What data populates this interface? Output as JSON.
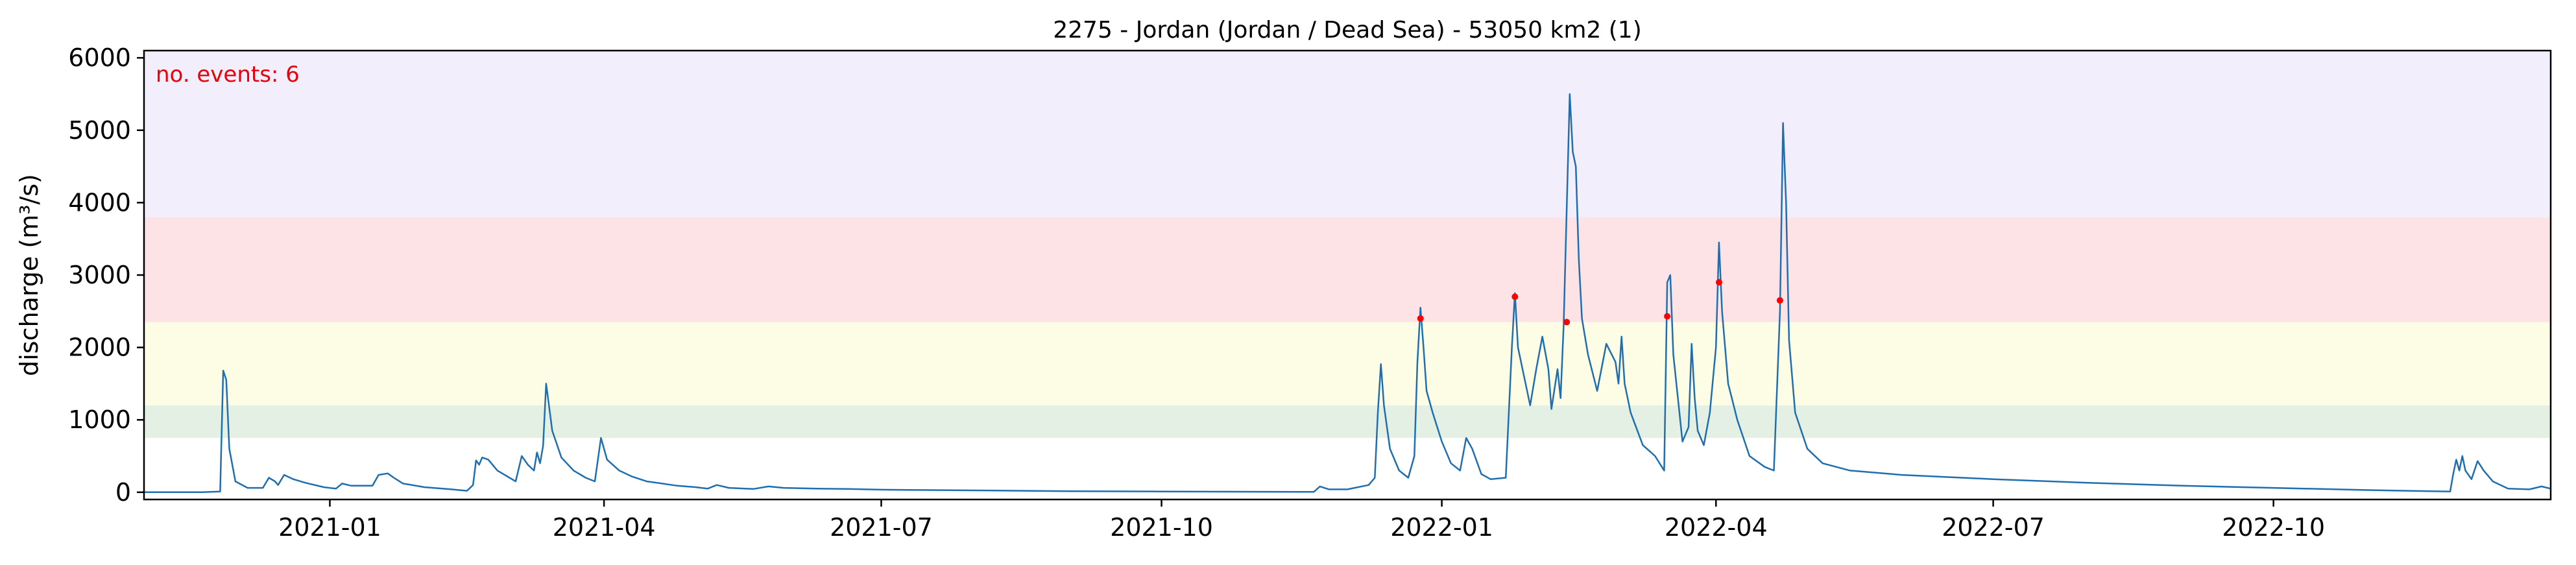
{
  "chart_data": {
    "type": "line",
    "title": "2275 - Jordan (Jordan / Dead Sea) - 53050 km2 (1)",
    "xlabel": "",
    "ylabel": "discharge (m³/s)",
    "annotation": "no. events: 6",
    "annotation_color": "#e8000b",
    "line_color": "#1f6fb0",
    "event_color": "#ff0000",
    "x_range": [
      "2020-11-01",
      "2022-12-31"
    ],
    "ylim": [
      -100,
      6100
    ],
    "yticks": [
      0,
      1000,
      2000,
      3000,
      4000,
      5000,
      6000
    ],
    "xticks": [
      "2021-01",
      "2021-04",
      "2021-07",
      "2021-10",
      "2022-01",
      "2022-04",
      "2022-07",
      "2022-10"
    ],
    "grid": false,
    "bands": [
      {
        "from": 750,
        "to": 1200,
        "color": "#e3f0e3"
      },
      {
        "from": 1200,
        "to": 2350,
        "color": "#fdfde5"
      },
      {
        "from": 2350,
        "to": 3800,
        "color": "#fde3e6"
      },
      {
        "from": 3800,
        "to": 6100,
        "color": "#f3eefb"
      }
    ],
    "series": [
      {
        "points": [
          [
            "2020-11-01",
            0
          ],
          [
            "2020-11-20",
            0
          ],
          [
            "2020-11-26",
            10
          ],
          [
            "2020-11-27",
            1680
          ],
          [
            "2020-11-28",
            1550
          ],
          [
            "2020-11-29",
            600
          ],
          [
            "2020-12-01",
            150
          ],
          [
            "2020-12-05",
            60
          ],
          [
            "2020-12-10",
            60
          ],
          [
            "2020-12-12",
            200
          ],
          [
            "2020-12-14",
            150
          ],
          [
            "2020-12-15",
            100
          ],
          [
            "2020-12-17",
            240
          ],
          [
            "2020-12-20",
            180
          ],
          [
            "2020-12-24",
            130
          ],
          [
            "2020-12-30",
            70
          ],
          [
            "2021-01-03",
            50
          ],
          [
            "2021-01-05",
            120
          ],
          [
            "2021-01-08",
            90
          ],
          [
            "2021-01-15",
            90
          ],
          [
            "2021-01-17",
            240
          ],
          [
            "2021-01-20",
            260
          ],
          [
            "2021-01-22",
            200
          ],
          [
            "2021-01-25",
            120
          ],
          [
            "2021-02-01",
            70
          ],
          [
            "2021-02-10",
            40
          ],
          [
            "2021-02-15",
            20
          ],
          [
            "2021-02-17",
            100
          ],
          [
            "2021-02-18",
            440
          ],
          [
            "2021-02-19",
            380
          ],
          [
            "2021-02-20",
            480
          ],
          [
            "2021-02-22",
            450
          ],
          [
            "2021-02-25",
            300
          ],
          [
            "2021-03-01",
            200
          ],
          [
            "2021-03-03",
            150
          ],
          [
            "2021-03-05",
            500
          ],
          [
            "2021-03-07",
            380
          ],
          [
            "2021-03-09",
            300
          ],
          [
            "2021-03-10",
            550
          ],
          [
            "2021-03-11",
            400
          ],
          [
            "2021-03-12",
            640
          ],
          [
            "2021-03-13",
            1500
          ],
          [
            "2021-03-15",
            850
          ],
          [
            "2021-03-18",
            480
          ],
          [
            "2021-03-22",
            300
          ],
          [
            "2021-03-26",
            200
          ],
          [
            "2021-03-29",
            150
          ],
          [
            "2021-03-31",
            750
          ],
          [
            "2021-04-02",
            450
          ],
          [
            "2021-04-06",
            300
          ],
          [
            "2021-04-10",
            220
          ],
          [
            "2021-04-15",
            150
          ],
          [
            "2021-04-20",
            120
          ],
          [
            "2021-04-25",
            90
          ],
          [
            "2021-05-01",
            70
          ],
          [
            "2021-05-05",
            50
          ],
          [
            "2021-05-08",
            100
          ],
          [
            "2021-05-12",
            60
          ],
          [
            "2021-05-20",
            45
          ],
          [
            "2021-05-25",
            80
          ],
          [
            "2021-05-30",
            60
          ],
          [
            "2021-06-10",
            50
          ],
          [
            "2021-06-20",
            45
          ],
          [
            "2021-07-01",
            35
          ],
          [
            "2021-08-01",
            25
          ],
          [
            "2021-09-01",
            15
          ],
          [
            "2021-10-01",
            10
          ],
          [
            "2021-11-15",
            5
          ],
          [
            "2021-11-20",
            5
          ],
          [
            "2021-11-22",
            80
          ],
          [
            "2021-11-25",
            40
          ],
          [
            "2021-12-01",
            40
          ],
          [
            "2021-12-08",
            100
          ],
          [
            "2021-12-10",
            200
          ],
          [
            "2021-12-11",
            1100
          ],
          [
            "2021-12-12",
            1770
          ],
          [
            "2021-12-13",
            1200
          ],
          [
            "2021-12-15",
            600
          ],
          [
            "2021-12-18",
            300
          ],
          [
            "2021-12-21",
            200
          ],
          [
            "2021-12-23",
            500
          ],
          [
            "2021-12-24",
            1800
          ],
          [
            "2021-12-25",
            2550
          ],
          [
            "2021-12-26",
            2000
          ],
          [
            "2021-12-27",
            1400
          ],
          [
            "2021-12-29",
            1100
          ],
          [
            "2022-01-01",
            700
          ],
          [
            "2022-01-04",
            400
          ],
          [
            "2022-01-07",
            300
          ],
          [
            "2022-01-09",
            750
          ],
          [
            "2022-01-11",
            600
          ],
          [
            "2022-01-14",
            250
          ],
          [
            "2022-01-17",
            180
          ],
          [
            "2022-01-22",
            200
          ],
          [
            "2022-01-24",
            2000
          ],
          [
            "2022-01-25",
            2750
          ],
          [
            "2022-01-26",
            2000
          ],
          [
            "2022-01-28",
            1600
          ],
          [
            "2022-01-30",
            1200
          ],
          [
            "2022-02-01",
            1700
          ],
          [
            "2022-02-03",
            2150
          ],
          [
            "2022-02-05",
            1700
          ],
          [
            "2022-02-06",
            1150
          ],
          [
            "2022-02-08",
            1700
          ],
          [
            "2022-02-09",
            1300
          ],
          [
            "2022-02-10",
            2300
          ],
          [
            "2022-02-12",
            5500
          ],
          [
            "2022-02-13",
            4700
          ],
          [
            "2022-02-14",
            4500
          ],
          [
            "2022-02-15",
            3200
          ],
          [
            "2022-02-16",
            2400
          ],
          [
            "2022-02-18",
            1900
          ],
          [
            "2022-02-21",
            1400
          ],
          [
            "2022-02-24",
            2050
          ],
          [
            "2022-02-27",
            1800
          ],
          [
            "2022-02-28",
            1500
          ],
          [
            "2022-03-01",
            2150
          ],
          [
            "2022-03-02",
            1500
          ],
          [
            "2022-03-04",
            1100
          ],
          [
            "2022-03-08",
            650
          ],
          [
            "2022-03-12",
            500
          ],
          [
            "2022-03-15",
            300
          ],
          [
            "2022-03-16",
            2900
          ],
          [
            "2022-03-17",
            3000
          ],
          [
            "2022-03-18",
            1900
          ],
          [
            "2022-03-20",
            1100
          ],
          [
            "2022-03-21",
            700
          ],
          [
            "2022-03-23",
            900
          ],
          [
            "2022-03-24",
            2050
          ],
          [
            "2022-03-25",
            1300
          ],
          [
            "2022-03-26",
            850
          ],
          [
            "2022-03-28",
            650
          ],
          [
            "2022-03-30",
            1100
          ],
          [
            "2022-04-01",
            2000
          ],
          [
            "2022-04-02",
            3450
          ],
          [
            "2022-04-03",
            2500
          ],
          [
            "2022-04-05",
            1500
          ],
          [
            "2022-04-08",
            1000
          ],
          [
            "2022-04-12",
            500
          ],
          [
            "2022-04-17",
            350
          ],
          [
            "2022-04-20",
            300
          ],
          [
            "2022-04-22",
            2500
          ],
          [
            "2022-04-23",
            5100
          ],
          [
            "2022-04-24",
            4000
          ],
          [
            "2022-04-25",
            2100
          ],
          [
            "2022-04-27",
            1100
          ],
          [
            "2022-05-01",
            600
          ],
          [
            "2022-05-06",
            400
          ],
          [
            "2022-05-15",
            300
          ],
          [
            "2022-06-01",
            240
          ],
          [
            "2022-07-01",
            180
          ],
          [
            "2022-08-01",
            130
          ],
          [
            "2022-09-01",
            90
          ],
          [
            "2022-10-01",
            60
          ],
          [
            "2022-11-01",
            30
          ],
          [
            "2022-11-28",
            10
          ],
          [
            "2022-11-29",
            250
          ],
          [
            "2022-11-30",
            450
          ],
          [
            "2022-12-01",
            300
          ],
          [
            "2022-12-02",
            500
          ],
          [
            "2022-12-03",
            300
          ],
          [
            "2022-12-05",
            180
          ],
          [
            "2022-12-07",
            430
          ],
          [
            "2022-12-09",
            300
          ],
          [
            "2022-12-12",
            150
          ],
          [
            "2022-12-17",
            50
          ],
          [
            "2022-12-24",
            40
          ],
          [
            "2022-12-28",
            80
          ],
          [
            "2022-12-31",
            50
          ]
        ]
      }
    ],
    "events": [
      [
        "2021-12-25",
        2400
      ],
      [
        "2022-01-25",
        2700
      ],
      [
        "2022-02-11",
        2350
      ],
      [
        "2022-03-16",
        2430
      ],
      [
        "2022-04-02",
        2900
      ],
      [
        "2022-04-22",
        2650
      ]
    ]
  }
}
